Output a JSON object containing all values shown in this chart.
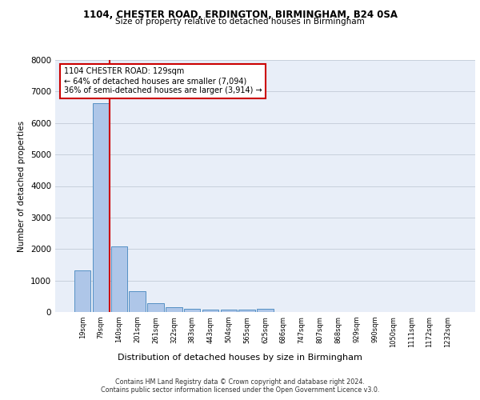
{
  "title1": "1104, CHESTER ROAD, ERDINGTON, BIRMINGHAM, B24 0SA",
  "title2": "Size of property relative to detached houses in Birmingham",
  "xlabel": "Distribution of detached houses by size in Birmingham",
  "ylabel": "Number of detached properties",
  "categories": [
    "19sqm",
    "79sqm",
    "140sqm",
    "201sqm",
    "261sqm",
    "322sqm",
    "383sqm",
    "443sqm",
    "504sqm",
    "565sqm",
    "625sqm",
    "686sqm",
    "747sqm",
    "807sqm",
    "868sqm",
    "929sqm",
    "990sqm",
    "1050sqm",
    "1111sqm",
    "1172sqm",
    "1232sqm"
  ],
  "values": [
    1310,
    6620,
    2080,
    650,
    280,
    150,
    100,
    80,
    80,
    80,
    100,
    0,
    0,
    0,
    0,
    0,
    0,
    0,
    0,
    0,
    0
  ],
  "bar_color": "#aec6e8",
  "bar_edge_color": "#5590c4",
  "property_sqm": 129,
  "annotation_line1": "1104 CHESTER ROAD: 129sqm",
  "annotation_line2": "← 64% of detached houses are smaller (7,094)",
  "annotation_line3": "36% of semi-detached houses are larger (3,914) →",
  "annotation_box_color": "#ffffff",
  "annotation_box_edge": "#cc0000",
  "vline_color": "#cc0000",
  "ylim": [
    0,
    8000
  ],
  "yticks": [
    0,
    1000,
    2000,
    3000,
    4000,
    5000,
    6000,
    7000,
    8000
  ],
  "grid_color": "#c8d0dc",
  "bg_color": "#e8eef8",
  "footer1": "Contains HM Land Registry data © Crown copyright and database right 2024.",
  "footer2": "Contains public sector information licensed under the Open Government Licence v3.0."
}
